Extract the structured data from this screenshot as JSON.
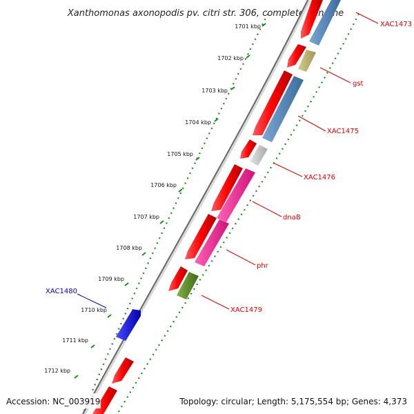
{
  "title": "Xanthomonas axonopodis pv. citri str. 306, complete genome",
  "accession": "Accession: NC_003919",
  "summary": "Topology: circular; Length: 5,175,554 bp; Genes: 4,373",
  "ruler": [
    "1701 kbp",
    "1702 kbp",
    "1703 kbp",
    "1704 kbp",
    "1705 kbp",
    "1706 kbp",
    "1707 kbp",
    "1708 kbp",
    "1709 kbp",
    "1710 kbp",
    "1711 kbp",
    "1712 kbp"
  ],
  "gene_labels": [
    {
      "name": "XAC1473",
      "color": "#e00000"
    },
    {
      "name": "gst",
      "color": "#e00000"
    },
    {
      "name": "XAC1475",
      "color": "#e00000"
    },
    {
      "name": "XAC1476",
      "color": "#e00000"
    },
    {
      "name": "dnaB",
      "color": "#e00000"
    },
    {
      "name": "phr",
      "color": "#e00000"
    },
    {
      "name": "XAC1479",
      "color": "#e00000"
    },
    {
      "name": "XAC1480",
      "color": "#0000cc"
    }
  ],
  "colors": {
    "red": "#ff0000",
    "steelblue": "#4a7fb5",
    "khaki": "#b8b06a",
    "grey": "#c8c8c8",
    "magenta": "#ff1493",
    "olive": "#5a8a28",
    "blue": "#0a0aee",
    "ruler_green": "#1a8a1a"
  }
}
